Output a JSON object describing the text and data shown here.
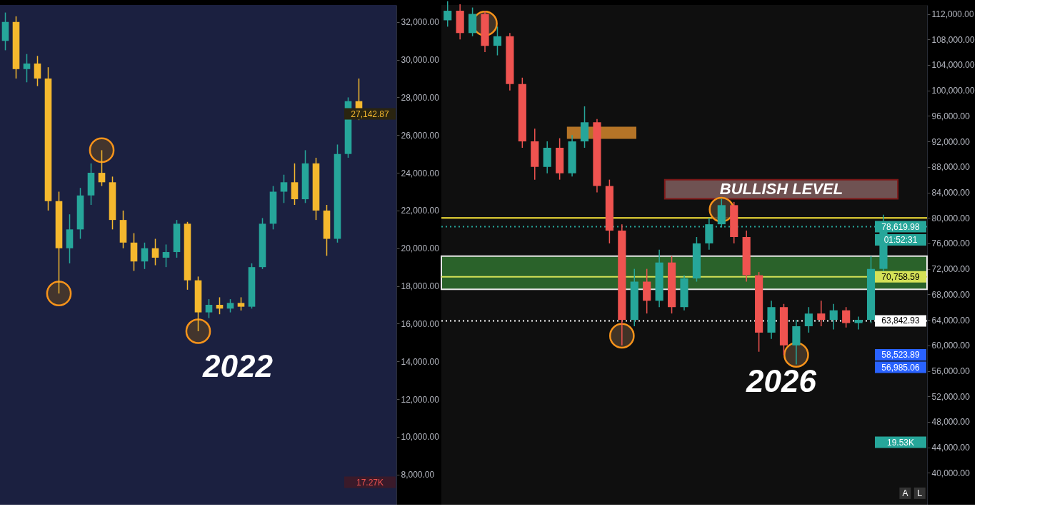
{
  "chart_data": [
    {
      "type": "candlestick",
      "categories": [
        null,
        null,
        null,
        null,
        null,
        null,
        null,
        null,
        null,
        null,
        null,
        null,
        null,
        null,
        null,
        null,
        null,
        null,
        null,
        null,
        null,
        null,
        null,
        null,
        null,
        null,
        null,
        null,
        null,
        null,
        null,
        null,
        null,
        null
      ],
      "ohlc": [
        [
          31000,
          32500,
          30500,
          32000
        ],
        [
          32000,
          32300,
          29000,
          29500
        ],
        [
          29500,
          30300,
          28800,
          29800
        ],
        [
          29800,
          30200,
          28600,
          29000
        ],
        [
          29000,
          29600,
          22000,
          22500
        ],
        [
          22500,
          23000,
          17600,
          20000
        ],
        [
          20000,
          21800,
          19200,
          21000
        ],
        [
          21000,
          23200,
          20500,
          22800
        ],
        [
          22800,
          24500,
          22300,
          24000
        ],
        [
          24000,
          25200,
          23300,
          23500
        ],
        [
          23500,
          23800,
          21000,
          21500
        ],
        [
          21500,
          22000,
          20000,
          20300
        ],
        [
          20300,
          20800,
          18800,
          19300
        ],
        [
          19300,
          20300,
          18900,
          20000
        ],
        [
          20000,
          20500,
          19100,
          19500
        ],
        [
          19500,
          20200,
          19000,
          19800
        ],
        [
          19800,
          21500,
          19500,
          21300
        ],
        [
          21300,
          21400,
          17800,
          18300
        ],
        [
          18300,
          18500,
          15600,
          16600
        ],
        [
          16600,
          17300,
          16300,
          17000
        ],
        [
          17000,
          17400,
          16500,
          16800
        ],
        [
          16800,
          17300,
          16600,
          17100
        ],
        [
          17100,
          17400,
          16700,
          16900
        ],
        [
          16900,
          19200,
          16800,
          19000
        ],
        [
          19000,
          21600,
          18900,
          21300
        ],
        [
          21300,
          23300,
          21000,
          23000
        ],
        [
          23000,
          23900,
          22400,
          23500
        ],
        [
          23500,
          24500,
          22300,
          22600
        ],
        [
          22600,
          25200,
          22400,
          24500
        ],
        [
          24500,
          24800,
          21500,
          22000
        ],
        [
          22000,
          22300,
          19600,
          20500
        ],
        [
          20500,
          25500,
          20300,
          25000
        ],
        [
          25000,
          28000,
          24800,
          27800
        ],
        [
          27800,
          29000,
          26800,
          27142.87
        ]
      ],
      "colors": [
        "#26a69a",
        "#f5b82e",
        "#26a69a",
        "#f5b82e",
        "#f5b82e",
        "#f5b82e",
        "#26a69a",
        "#26a69a",
        "#26a69a",
        "#f5b82e",
        "#f5b82e",
        "#f5b82e",
        "#f5b82e",
        "#26a69a",
        "#f5b82e",
        "#26a69a",
        "#26a69a",
        "#f5b82e",
        "#f5b82e",
        "#26a69a",
        "#f5b82e",
        "#26a69a",
        "#f5b82e",
        "#26a69a",
        "#26a69a",
        "#26a69a",
        "#26a69a",
        "#f5b82e",
        "#26a69a",
        "#f5b82e",
        "#f5b82e",
        "#26a69a",
        "#26a69a",
        "#f5b82e"
      ],
      "series": [
        {
          "type": "scatter",
          "values": [
            null,
            null,
            null,
            null,
            null,
            17600,
            null,
            null,
            null,
            25200,
            null,
            null,
            null,
            null,
            null,
            null,
            null,
            null,
            15600,
            null,
            null,
            null,
            null,
            null,
            null,
            null,
            null,
            null,
            null,
            null,
            null,
            null,
            null,
            null
          ],
          "color": "#f7931a"
        }
      ],
      "marker": "circle",
      "ylim": [
        6400,
        32900
      ],
      "yticks": [
        {
          "value": 8000,
          "label": "8,000.00"
        },
        {
          "value": 10000,
          "label": "10,000.00"
        },
        {
          "value": 12000,
          "label": "12,000.00"
        },
        {
          "value": 14000,
          "label": "14,000.00"
        },
        {
          "value": 16000,
          "label": "16,000.00"
        },
        {
          "value": 18000,
          "label": "18,000.00"
        },
        {
          "value": 20000,
          "label": "20,000.00"
        },
        {
          "value": 22000,
          "label": "22,000.00"
        },
        {
          "value": 24000,
          "label": "24,000.00"
        },
        {
          "value": 26000,
          "label": "26,000.00"
        },
        {
          "value": 28000,
          "label": "28,000.00"
        },
        {
          "value": 30000,
          "label": "30,000.00"
        },
        {
          "value": 32000,
          "label": "32,000.00"
        }
      ],
      "tick_labels": "y",
      "grid": false,
      "annotations": [
        "2022",
        "27,142.87",
        "17.27K"
      ]
    },
    {
      "type": "candlestick",
      "categories": [
        null,
        null,
        null,
        null,
        null,
        null,
        null,
        null,
        null,
        null,
        null,
        null,
        null,
        null,
        null,
        null,
        null,
        null,
        null,
        null,
        null,
        null,
        null,
        null,
        null,
        null,
        null,
        null,
        null,
        null,
        null,
        null,
        null,
        null,
        null,
        null
      ],
      "ohlc": [
        [
          111000,
          114000,
          110000,
          112500
        ],
        [
          112500,
          113500,
          108000,
          109000
        ],
        [
          109000,
          113000,
          108500,
          112000
        ],
        [
          112000,
          112500,
          106000,
          107000
        ],
        [
          107000,
          110000,
          105500,
          108500
        ],
        [
          108500,
          109000,
          100000,
          101000
        ],
        [
          101000,
          102000,
          91000,
          92000
        ],
        [
          92000,
          94000,
          86000,
          88000
        ],
        [
          88000,
          92000,
          87000,
          91000
        ],
        [
          91000,
          92500,
          86000,
          87000
        ],
        [
          87000,
          93000,
          86500,
          92000
        ],
        [
          92000,
          97500,
          91000,
          95000
        ],
        [
          95000,
          95500,
          84000,
          85000
        ],
        [
          85000,
          86000,
          76000,
          78000
        ],
        [
          78000,
          79000,
          60000,
          64000
        ],
        [
          64000,
          72000,
          63000,
          70000
        ],
        [
          70000,
          72000,
          65000,
          67000
        ],
        [
          67000,
          75000,
          66000,
          73000
        ],
        [
          73000,
          74000,
          65000,
          66000
        ],
        [
          66000,
          71000,
          65500,
          70500
        ],
        [
          70500,
          77000,
          70000,
          76000
        ],
        [
          76000,
          80000,
          75000,
          79000
        ],
        [
          79000,
          83000,
          78500,
          82000
        ],
        [
          82000,
          82500,
          76000,
          77000
        ],
        [
          77000,
          78000,
          70000,
          71000
        ],
        [
          71000,
          71500,
          59000,
          62000
        ],
        [
          62000,
          67000,
          61000,
          66000
        ],
        [
          66000,
          66500,
          58500,
          60000
        ],
        [
          60000,
          64000,
          57000,
          63000
        ],
        [
          63000,
          66000,
          62000,
          65000
        ],
        [
          65000,
          67000,
          63000,
          64000
        ],
        [
          64000,
          66500,
          62500,
          65500
        ],
        [
          65500,
          66000,
          62800,
          63500
        ],
        [
          63500,
          64500,
          62500,
          64000
        ],
        [
          64000,
          74000,
          63500,
          72000
        ],
        [
          72000,
          80500,
          71500,
          78619.98
        ]
      ],
      "colors": [
        "#26a69a",
        "#ef5350",
        "#26a69a",
        "#ef5350",
        "#26a69a",
        "#ef5350",
        "#ef5350",
        "#ef5350",
        "#26a69a",
        "#ef5350",
        "#26a69a",
        "#26a69a",
        "#ef5350",
        "#ef5350",
        "#ef5350",
        "#26a69a",
        "#ef5350",
        "#26a69a",
        "#ef5350",
        "#26a69a",
        "#26a69a",
        "#26a69a",
        "#26a69a",
        "#ef5350",
        "#ef5350",
        "#ef5350",
        "#26a69a",
        "#ef5350",
        "#26a69a",
        "#26a69a",
        "#ef5350",
        "#26a69a",
        "#ef5350",
        "#26a69a",
        "#26a69a",
        "#26a69a"
      ],
      "series": [
        {
          "type": "scatter",
          "values": [
            null,
            null,
            null,
            110500,
            null,
            null,
            null,
            null,
            null,
            null,
            null,
            null,
            null,
            null,
            61500,
            null,
            null,
            null,
            null,
            null,
            null,
            null,
            81300,
            null,
            null,
            null,
            null,
            null,
            58500,
            null,
            null,
            null,
            null,
            null,
            null,
            null
          ],
          "color": "#f7931a"
        }
      ],
      "marker": "circle",
      "ylim": [
        35000,
        113400
      ],
      "yticks": [
        {
          "value": 40000,
          "label": "40,000.00"
        },
        {
          "value": 44000,
          "label": "44,000.00"
        },
        {
          "value": 48000,
          "label": "48,000.00"
        },
        {
          "value": 52000,
          "label": "52,000.00"
        },
        {
          "value": 56000,
          "label": "56,000.00"
        },
        {
          "value": 60000,
          "label": "60,000.00"
        },
        {
          "value": 64000,
          "label": "64,000.00"
        },
        {
          "value": 68000,
          "label": "68,000.00"
        },
        {
          "value": 72000,
          "label": "72,000.00"
        },
        {
          "value": 76000,
          "label": "76,000.00"
        },
        {
          "value": 80000,
          "label": "80,000.00"
        },
        {
          "value": 84000,
          "label": "84,000.00"
        },
        {
          "value": 88000,
          "label": "88,000.00"
        },
        {
          "value": 92000,
          "label": "92,000.00"
        },
        {
          "value": 96000,
          "label": "96,000.00"
        },
        {
          "value": 100000,
          "label": "100,000.00"
        },
        {
          "value": 104000,
          "label": "104,000.00"
        },
        {
          "value": 108000,
          "label": "108,000.00"
        },
        {
          "value": 112000,
          "label": "112,000.00"
        }
      ],
      "tick_labels": "y",
      "grid": false,
      "ref_lines": [
        {
          "axis": "y",
          "value": 80000,
          "label": null,
          "color": "#ffeb3b",
          "line_style": "solid"
        },
        {
          "axis": "y",
          "value": 78619.98,
          "label": "78,619.98",
          "color": "#26a69a",
          "line_style": "dotted"
        },
        {
          "axis": "y",
          "value": 70758.59,
          "label": "70,758.59",
          "color": "#d4e157",
          "line_style": "solid"
        },
        {
          "axis": "y",
          "value": 63842.93,
          "label": "63,842.93",
          "color": "#ffffff",
          "line_style": "dotted"
        }
      ],
      "bands": [
        {
          "axis": "y",
          "from": 68800,
          "to": 74000,
          "label": null,
          "color": "#2e6b2e"
        },
        {
          "axis": "y",
          "from": 92500,
          "to": 94200,
          "label": null,
          "color": "#c7802a"
        },
        {
          "axis": "y",
          "from": 83000,
          "to": 86000,
          "label": "BULLISH LEVEL",
          "color": "#7a5a5a"
        }
      ],
      "annotations": [
        "2026",
        "01:52:31",
        "58,523.89",
        "56,985.06",
        "19.53K",
        "A",
        "L"
      ]
    }
  ]
}
